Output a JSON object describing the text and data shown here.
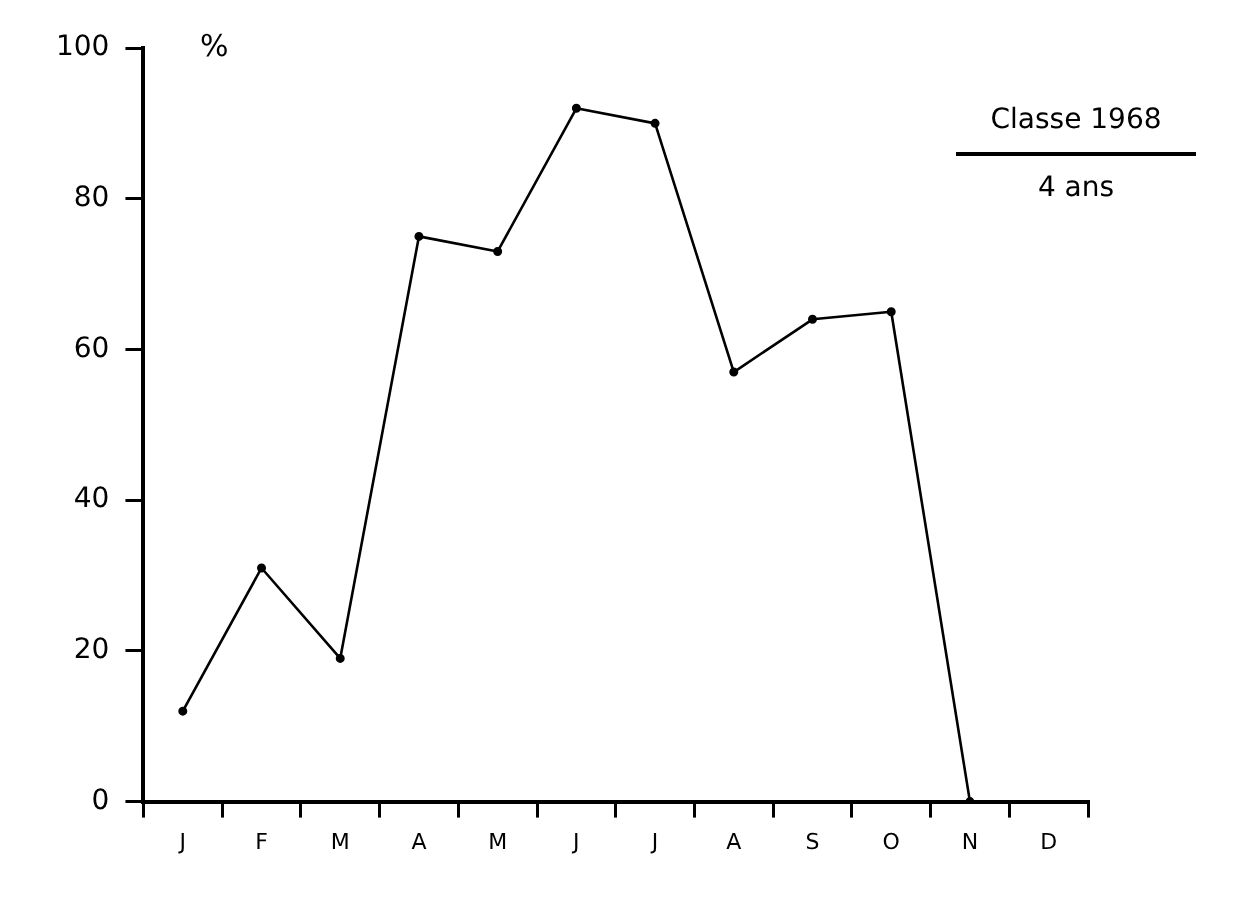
{
  "chart_data": {
    "type": "line",
    "ylabel": "%",
    "annotations": [
      "Classe 1968",
      "4 ans"
    ],
    "categories": [
      "J",
      "F",
      "M",
      "A",
      "M",
      "J",
      "J",
      "A",
      "S",
      "O",
      "N",
      "D"
    ],
    "series": [
      {
        "color": "#000000",
        "values": [
          12,
          31,
          19,
          75,
          73,
          92,
          90,
          57,
          64,
          65,
          0,
          null
        ]
      }
    ],
    "ylim": [
      0,
      100
    ],
    "yticks": [
      0,
      20,
      40,
      60,
      80,
      100
    ],
    "grid": false,
    "legend": false,
    "marker": "circle",
    "line_style": "solid"
  }
}
